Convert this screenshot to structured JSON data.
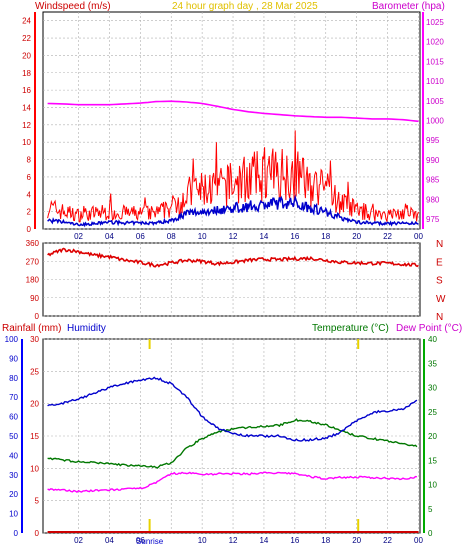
{
  "header": {
    "windspeed_label": "Windspeed (m/s)",
    "title": "24 hour graph day , 28 Mar 2025",
    "barometer_label": "Barometer (hpa)"
  },
  "labels": {
    "rainfall": "Rainfall (mm)",
    "humidity": "Humidity",
    "temperature": "Temperature (°C)",
    "dewpoint": "Dew Point (°C)",
    "sunrise": "Sunrise"
  },
  "colors": {
    "windspeed": "#ff0000",
    "windspeed_label": "#cc0000",
    "title": "#e0c000",
    "barometer": "#ff00ff",
    "wind_avg": "#0000cc",
    "direction": "#dd0000",
    "humidity": "#0000cc",
    "temperature": "#007700",
    "dewpoint": "#ff00ff",
    "rainfall": "#cc0000",
    "sun_marker": "#e8d200",
    "grid": "#b0b0b0",
    "axis_text": "#000080"
  },
  "chart_data": [
    {
      "type": "line",
      "title": "24 hour graph day , 28 Mar 2025",
      "x_ticks": [
        "02",
        "04",
        "06",
        "08",
        "10",
        "12",
        "14",
        "16",
        "18",
        "20",
        "22",
        "00"
      ],
      "y_left_label": "Windspeed (m/s)",
      "y_left_ticks": [
        0,
        2,
        4,
        6,
        8,
        10,
        12,
        14,
        16,
        18,
        20,
        22,
        24
      ],
      "ylim_left": [
        0,
        25
      ],
      "y_right_label": "Barometer (hpa)",
      "y_right_ticks": [
        975,
        980,
        985,
        990,
        995,
        1000,
        1005,
        1010,
        1015,
        1020,
        1025
      ],
      "ylim_right": [
        972.5,
        1027.5
      ],
      "x_hours": [
        0,
        1,
        2,
        3,
        4,
        5,
        6,
        7,
        8,
        9,
        10,
        11,
        12,
        13,
        14,
        15,
        16,
        17,
        18,
        19,
        20,
        21,
        22,
        23,
        24
      ],
      "series": [
        {
          "name": "Windspeed gust",
          "values": [
            2.5,
            2.0,
            1.6,
            1.8,
            2.0,
            1.8,
            1.8,
            1.8,
            2.5,
            4.0,
            4.5,
            4.8,
            5.0,
            6.0,
            6.0,
            6.5,
            6.5,
            5.0,
            4.5,
            3.0,
            2.2,
            1.8,
            1.6,
            1.8,
            1.5
          ]
        },
        {
          "name": "Windspeed average",
          "values": [
            1.0,
            0.8,
            0.5,
            0.6,
            0.8,
            0.7,
            0.7,
            0.7,
            1.0,
            1.8,
            2.0,
            2.2,
            2.4,
            2.6,
            2.8,
            3.0,
            3.0,
            2.5,
            2.0,
            1.3,
            0.8,
            0.7,
            0.6,
            0.7,
            0.6
          ]
        },
        {
          "name": "Barometer",
          "values": [
            1004.3,
            1004.2,
            1004.0,
            1004.0,
            1004.0,
            1004.2,
            1004.4,
            1004.8,
            1004.9,
            1004.7,
            1004.3,
            1003.6,
            1002.8,
            1002.2,
            1001.8,
            1001.5,
            1001.2,
            1001.0,
            1000.8,
            1000.8,
            1000.6,
            1000.4,
            1000.4,
            1000.2,
            999.8
          ]
        }
      ]
    },
    {
      "type": "line",
      "x_ticks": [
        "02",
        "04",
        "06",
        "08",
        "10",
        "12",
        "14",
        "16",
        "18",
        "20",
        "22",
        "00"
      ],
      "y_left_ticks": [
        0,
        90,
        180,
        270,
        360
      ],
      "ylim": [
        0,
        360
      ],
      "y_right_ticks": [
        "N",
        "W",
        "S",
        "E",
        "N"
      ],
      "x_hours": [
        0,
        1,
        2,
        3,
        4,
        5,
        6,
        7,
        8,
        9,
        10,
        11,
        12,
        13,
        14,
        15,
        16,
        17,
        18,
        19,
        20,
        21,
        22,
        23,
        24
      ],
      "series": [
        {
          "name": "Wind direction",
          "values": [
            300,
            328,
            318,
            300,
            292,
            275,
            264,
            250,
            262,
            275,
            270,
            258,
            265,
            275,
            280,
            278,
            282,
            285,
            275,
            265,
            262,
            260,
            260,
            255,
            250
          ]
        }
      ]
    },
    {
      "type": "line",
      "x_ticks": [
        "02",
        "04",
        "06",
        "08",
        "10",
        "12",
        "14",
        "16",
        "18",
        "20",
        "22",
        "00"
      ],
      "x_annotations": [
        {
          "label": "Sunrise",
          "hour": 6.6
        },
        {
          "label": "",
          "hour": 20.1
        }
      ],
      "y_humidity_ticks": [
        0,
        10,
        20,
        30,
        40,
        50,
        60,
        70,
        80,
        90,
        100
      ],
      "ylim_humidity": [
        0,
        100
      ],
      "y_rain_ticks": [
        0,
        5,
        10,
        15,
        20,
        25,
        30
      ],
      "ylim_rain": [
        0,
        30
      ],
      "y_temp_ticks": [
        0,
        5,
        10,
        15,
        20,
        25,
        30,
        35,
        40
      ],
      "ylim_temp": [
        0,
        40
      ],
      "x_hours": [
        0,
        1,
        2,
        3,
        4,
        5,
        6,
        7,
        8,
        9,
        10,
        11,
        12,
        13,
        14,
        15,
        16,
        17,
        18,
        19,
        20,
        21,
        22,
        23,
        24
      ],
      "series": [
        {
          "name": "Humidity",
          "values": [
            66,
            67,
            69,
            72,
            75,
            77,
            79,
            80,
            77,
            70,
            60,
            54,
            51,
            50,
            50,
            50,
            48,
            48,
            49,
            52,
            58,
            62,
            63,
            64,
            69
          ]
        },
        {
          "name": "Temperature",
          "values": [
            15.5,
            15,
            14.7,
            14.5,
            14.3,
            14,
            13.8,
            13.5,
            14.5,
            17.5,
            19.5,
            20.8,
            21.5,
            21.8,
            22,
            22.2,
            23.3,
            23,
            22.3,
            21,
            20,
            19.5,
            19,
            18.3,
            17.8
          ]
        },
        {
          "name": "Dew Point",
          "values": [
            9,
            8.8,
            8.6,
            8.7,
            8.9,
            9,
            9.2,
            10.3,
            12.2,
            12.4,
            12.1,
            12.2,
            12.2,
            12.2,
            12.4,
            12.3,
            12.3,
            11.6,
            11.2,
            11.5,
            11.5,
            11.4,
            11.3,
            11.2,
            11.5
          ]
        },
        {
          "name": "Rainfall",
          "values": [
            0,
            0,
            0,
            0,
            0,
            0,
            0,
            0,
            0,
            0,
            0,
            0,
            0,
            0,
            0,
            0,
            0,
            0,
            0,
            0,
            0,
            0,
            0,
            0,
            0
          ]
        }
      ]
    }
  ]
}
